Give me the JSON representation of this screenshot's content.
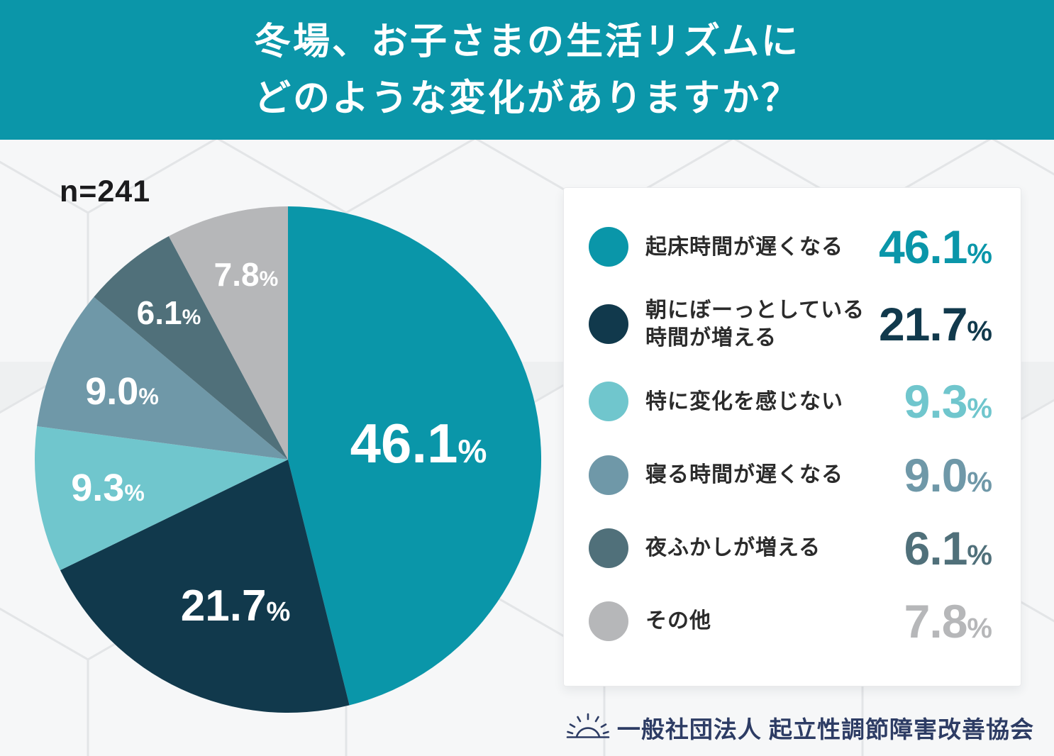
{
  "header": {
    "title_line1": "冬場、お子さまの生活リズムに",
    "title_line2": "どのような変化がありますか？",
    "background_color": "#0b96a9",
    "text_color": "#ffffff"
  },
  "sample_label": "n=241",
  "chart_data": {
    "type": "pie",
    "title": "冬場、お子さまの生活リズムにどのような変化がありますか？",
    "sample_size": "n=241",
    "start_angle": "top",
    "direction": "clockwise",
    "legend_position": "right",
    "segments": [
      {
        "label": "起床時間が遅くなる",
        "value": 46.1,
        "color": "#0a96a9"
      },
      {
        "label": "朝にぼーっとしている時間が増える",
        "value": 21.7,
        "color": "#11394c"
      },
      {
        "label": "特に変化を感じない",
        "value": 9.3,
        "color": "#70c6cd"
      },
      {
        "label": "寝る時間が遅くなる",
        "value": 9.0,
        "color": "#6f98a8"
      },
      {
        "label": "夜ふかしが増える",
        "value": 6.1,
        "color": "#50707a"
      },
      {
        "label": "その他",
        "value": 7.8,
        "color": "#b6b7b9"
      }
    ]
  },
  "legend": {
    "items": [
      {
        "label": "起床時間が遅くなる",
        "label2": "",
        "value": "46.1",
        "unit": "%",
        "color": "#0a96a9"
      },
      {
        "label": "朝にぼーっとしている",
        "label2": "時間が増える",
        "value": "21.7",
        "unit": "%",
        "color": "#11394c"
      },
      {
        "label": "特に変化を感じない",
        "label2": "",
        "value": "9.3",
        "unit": "%",
        "color": "#70c6cd"
      },
      {
        "label": "寝る時間が遅くなる",
        "label2": "",
        "value": "9.0",
        "unit": "%",
        "color": "#6f98a8"
      },
      {
        "label": "夜ふかしが増える",
        "label2": "",
        "value": "6.1",
        "unit": "%",
        "color": "#50707a"
      },
      {
        "label": "その他",
        "label2": "",
        "value": "7.8",
        "unit": "%",
        "color": "#b6b7b9"
      }
    ]
  },
  "footer": {
    "org_name": "一般社団法人 起立性調節障害改善協会",
    "icon": "rising-sun-icon",
    "text_color": "#2d3c64"
  }
}
